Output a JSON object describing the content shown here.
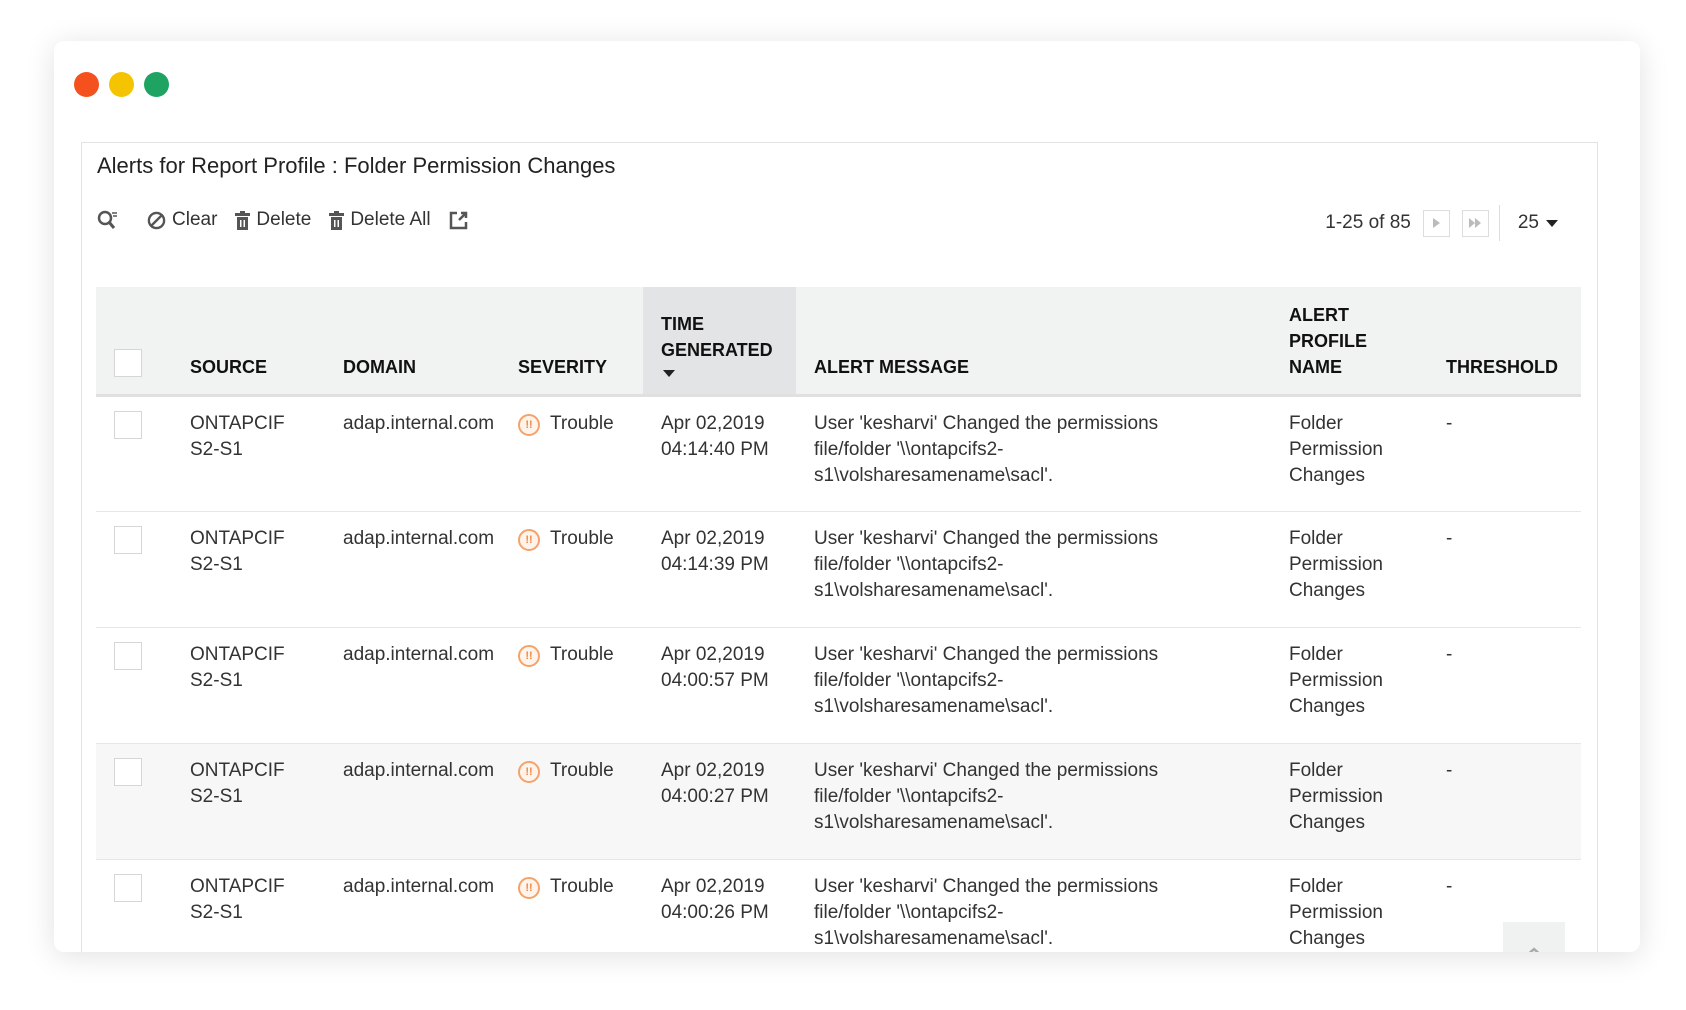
{
  "window": {
    "dots": [
      "#f4511e",
      "#f5c400",
      "#1ea362"
    ]
  },
  "title": "Alerts for Report Profile : Folder Permission Changes",
  "toolbar": {
    "search_icon": "search-filter-icon",
    "clear": "Clear",
    "delete": "Delete",
    "delete_all": "Delete All",
    "export_icon": "export-icon"
  },
  "pager": {
    "range": "1-25 of 85",
    "per_page": "25"
  },
  "columns": [
    "SOURCE",
    "DOMAIN",
    "SEVERITY",
    "TIME GENERATED",
    "ALERT MESSAGE",
    "ALERT PROFILE NAME",
    "THRESHOLD"
  ],
  "sort": {
    "column": "TIME GENERATED",
    "direction": "descending"
  },
  "rows": [
    {
      "source": "ONTAPCIFS2-S1",
      "domain": "adap.internal.com",
      "severity": "Trouble",
      "time": "Apr 02,2019 04:14:40 PM",
      "message": "User 'kesharvi' Changed the permissions file/folder '\\\\ontapcifs2-s1\\volsharesamename\\sacl'.",
      "profile": "Folder Permission Changes",
      "threshold": "-"
    },
    {
      "source": "ONTAPCIFS2-S1",
      "domain": "adap.internal.com",
      "severity": "Trouble",
      "time": "Apr 02,2019 04:14:39 PM",
      "message": "User 'kesharvi' Changed the permissions file/folder '\\\\ontapcifs2-s1\\volsharesamename\\sacl'.",
      "profile": "Folder Permission Changes",
      "threshold": "-"
    },
    {
      "source": "ONTAPCIFS2-S1",
      "domain": "adap.internal.com",
      "severity": "Trouble",
      "time": "Apr 02,2019 04:00:57 PM",
      "message": "User 'kesharvi' Changed the permissions file/folder '\\\\ontapcifs2-s1\\volsharesamename\\sacl'.",
      "profile": "Folder Permission Changes",
      "threshold": "-"
    },
    {
      "source": "ONTAPCIFS2-S1",
      "domain": "adap.internal.com",
      "severity": "Trouble",
      "time": "Apr 02,2019 04:00:27 PM",
      "message": "User 'kesharvi' Changed the permissions file/folder '\\\\ontapcifs2-s1\\volsharesamename\\sacl'.",
      "profile": "Folder Permission Changes",
      "threshold": "-"
    },
    {
      "source": "ONTAPCIFS2-S1",
      "domain": "adap.internal.com",
      "severity": "Trouble",
      "time": "Apr 02,2019 04:00:26 PM",
      "message": "User 'kesharvi' Changed the permissions file/folder '\\\\ontapcifs2-s1\\volsharesamename\\sacl'.",
      "profile": "Folder Permission Changes",
      "threshold": "-"
    }
  ],
  "colors": {
    "trouble": "#f08a45",
    "header_bg": "#f1f2f2",
    "sorted_header_bg": "#e2e4e5"
  }
}
